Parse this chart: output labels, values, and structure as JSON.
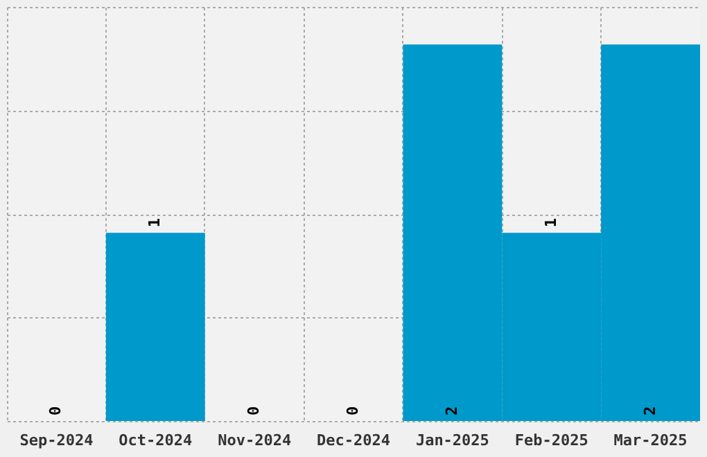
{
  "chart_data": {
    "type": "bar",
    "categories": [
      "Sep-2024",
      "Oct-2024",
      "Nov-2024",
      "Dec-2024",
      "Jan-2025",
      "Feb-2025",
      "Mar-2025"
    ],
    "values": [
      0,
      1,
      0,
      0,
      2,
      1,
      2
    ],
    "color": "#0099cc",
    "ylim": [
      0,
      2.2
    ],
    "yticks": [
      {
        "value": 0,
        "label": null
      },
      {
        "value": 0.55,
        "label": null
      },
      {
        "value": 1.1,
        "label": null
      },
      {
        "value": 1.65,
        "label": null
      },
      {
        "value": 2.2,
        "label": null
      }
    ],
    "grid": true,
    "data_labels": true,
    "tick_labels": "x"
  }
}
